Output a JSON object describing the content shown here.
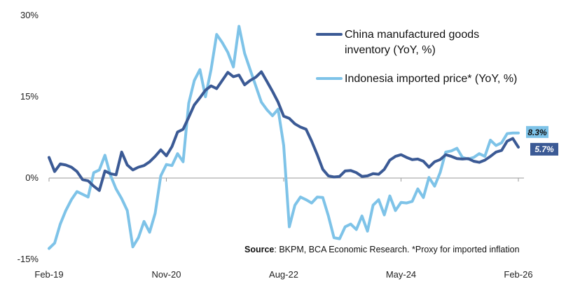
{
  "chart_data": {
    "type": "line",
    "title": "",
    "xlabel": "",
    "ylabel": "",
    "ylim": [
      -15,
      30
    ],
    "y_ticks": [
      "-15%",
      "0%",
      "15%",
      "30%"
    ],
    "y_tick_values": [
      -15,
      0,
      15,
      30
    ],
    "x_tick_labels": [
      "Feb-19",
      "Nov-20",
      "Aug-22",
      "May-24",
      "Feb-26"
    ],
    "x_tick_dates": [
      "2019-02",
      "2020-11",
      "2022-08",
      "2024-05",
      "2026-02"
    ],
    "grid": false,
    "legend_position": "top-right",
    "series": [
      {
        "name": "China manufactured goods inventory (YoY, %)",
        "legend_lines": [
          "China manufactured goods",
          "inventory (YoY, %)"
        ],
        "color": "#3b5a95",
        "end_label": "5.7%",
        "points": [
          [
            "2019-02",
            3.8
          ],
          [
            "2019-03",
            1.2
          ],
          [
            "2019-04",
            2.6
          ],
          [
            "2019-05",
            2.4
          ],
          [
            "2019-06",
            2.0
          ],
          [
            "2019-07",
            1.2
          ],
          [
            "2019-08",
            -0.3
          ],
          [
            "2019-09",
            -0.5
          ],
          [
            "2019-10",
            -1.5
          ],
          [
            "2019-11",
            -2.3
          ],
          [
            "2019-12",
            1.3
          ],
          [
            "2020-01",
            0.8
          ],
          [
            "2020-02",
            0.6
          ],
          [
            "2020-03",
            4.8
          ],
          [
            "2020-04",
            2.4
          ],
          [
            "2020-05",
            1.5
          ],
          [
            "2020-06",
            2.0
          ],
          [
            "2020-07",
            2.3
          ],
          [
            "2020-08",
            3.0
          ],
          [
            "2020-09",
            4.0
          ],
          [
            "2020-10",
            5.2
          ],
          [
            "2020-11",
            4.1
          ],
          [
            "2020-12",
            5.8
          ],
          [
            "2021-01",
            8.5
          ],
          [
            "2021-02",
            9.0
          ],
          [
            "2021-03",
            11.2
          ],
          [
            "2021-04",
            13.5
          ],
          [
            "2021-05",
            14.8
          ],
          [
            "2021-06",
            16.2
          ],
          [
            "2021-07",
            17.0
          ],
          [
            "2021-08",
            16.5
          ],
          [
            "2021-09",
            18.0
          ],
          [
            "2021-10",
            19.5
          ],
          [
            "2021-11",
            18.7
          ],
          [
            "2021-12",
            19.0
          ],
          [
            "2022-01",
            17.2
          ],
          [
            "2022-02",
            18.0
          ],
          [
            "2022-03",
            18.6
          ],
          [
            "2022-04",
            19.6
          ],
          [
            "2022-05",
            17.8
          ],
          [
            "2022-06",
            16.0
          ],
          [
            "2022-07",
            14.0
          ],
          [
            "2022-08",
            11.4
          ],
          [
            "2022-09",
            11.0
          ],
          [
            "2022-10",
            10.0
          ],
          [
            "2022-11",
            9.4
          ],
          [
            "2022-12",
            9.0
          ],
          [
            "2023-01",
            6.8
          ],
          [
            "2023-02",
            4.3
          ],
          [
            "2023-03",
            1.6
          ],
          [
            "2023-04",
            0.4
          ],
          [
            "2023-05",
            0.2
          ],
          [
            "2023-06",
            0.3
          ],
          [
            "2023-07",
            1.3
          ],
          [
            "2023-08",
            1.4
          ],
          [
            "2023-09",
            1.0
          ],
          [
            "2023-10",
            0.3
          ],
          [
            "2023-11",
            0.4
          ],
          [
            "2023-12",
            0.8
          ],
          [
            "2024-01",
            0.7
          ],
          [
            "2024-02",
            1.6
          ],
          [
            "2024-03",
            3.3
          ],
          [
            "2024-04",
            4.0
          ],
          [
            "2024-05",
            4.3
          ],
          [
            "2024-06",
            3.8
          ],
          [
            "2024-07",
            3.4
          ],
          [
            "2024-08",
            3.5
          ],
          [
            "2024-09",
            3.1
          ],
          [
            "2024-10",
            2.0
          ],
          [
            "2024-11",
            3.0
          ],
          [
            "2024-12",
            3.4
          ],
          [
            "2025-01",
            4.3
          ],
          [
            "2025-02",
            4.0
          ],
          [
            "2025-03",
            3.6
          ],
          [
            "2025-04",
            3.5
          ],
          [
            "2025-05",
            3.6
          ],
          [
            "2025-06",
            3.1
          ],
          [
            "2025-07",
            2.9
          ],
          [
            "2025-08",
            3.3
          ],
          [
            "2025-09",
            4.0
          ],
          [
            "2025-10",
            4.8
          ],
          [
            "2025-11",
            5.1
          ],
          [
            "2025-12",
            6.8
          ],
          [
            "2026-01",
            7.3
          ],
          [
            "2026-02",
            5.7
          ]
        ]
      },
      {
        "name": "Indonesia imported price* (YoY, %)",
        "legend_lines": [
          "Indonesia imported price* (YoY, %)"
        ],
        "color": "#7ec3e8",
        "end_label": "8.3%",
        "points": [
          [
            "2019-02",
            -13.0
          ],
          [
            "2019-03",
            -12.0
          ],
          [
            "2019-04",
            -8.5
          ],
          [
            "2019-05",
            -6.0
          ],
          [
            "2019-06",
            -4.0
          ],
          [
            "2019-07",
            -2.5
          ],
          [
            "2019-08",
            -3.0
          ],
          [
            "2019-09",
            -3.5
          ],
          [
            "2019-10",
            1.0
          ],
          [
            "2019-11",
            1.5
          ],
          [
            "2019-12",
            4.2
          ],
          [
            "2020-01",
            0.5
          ],
          [
            "2020-02",
            -2.0
          ],
          [
            "2020-03",
            -3.8
          ],
          [
            "2020-04",
            -6.0
          ],
          [
            "2020-05",
            -12.7
          ],
          [
            "2020-06",
            -11.0
          ],
          [
            "2020-07",
            -8.0
          ],
          [
            "2020-08",
            -10.0
          ],
          [
            "2020-09",
            -6.5
          ],
          [
            "2020-10",
            0.4
          ],
          [
            "2020-11",
            2.5
          ],
          [
            "2020-12",
            2.3
          ],
          [
            "2021-01",
            4.5
          ],
          [
            "2021-02",
            3.0
          ],
          [
            "2021-03",
            13.8
          ],
          [
            "2021-04",
            18.0
          ],
          [
            "2021-05",
            20.0
          ],
          [
            "2021-06",
            15.0
          ],
          [
            "2021-07",
            20.0
          ],
          [
            "2021-08",
            26.5
          ],
          [
            "2021-09",
            25.0
          ],
          [
            "2021-10",
            23.2
          ],
          [
            "2021-11",
            20.5
          ],
          [
            "2021-12",
            28.0
          ],
          [
            "2022-01",
            23.0
          ],
          [
            "2022-02",
            20.0
          ],
          [
            "2022-03",
            17.0
          ],
          [
            "2022-04",
            14.0
          ],
          [
            "2022-05",
            12.6
          ],
          [
            "2022-06",
            11.5
          ],
          [
            "2022-07",
            12.7
          ],
          [
            "2022-08",
            6.0
          ],
          [
            "2022-09",
            -9.0
          ],
          [
            "2022-10",
            -5.0
          ],
          [
            "2022-11",
            -3.5
          ],
          [
            "2022-12",
            -4.0
          ],
          [
            "2023-01",
            -4.6
          ],
          [
            "2023-02",
            -3.5
          ],
          [
            "2023-03",
            -3.6
          ],
          [
            "2023-04",
            -7.0
          ],
          [
            "2023-05",
            -11.0
          ],
          [
            "2023-06",
            -11.2
          ],
          [
            "2023-07",
            -9.0
          ],
          [
            "2023-08",
            -8.5
          ],
          [
            "2023-09",
            -9.5
          ],
          [
            "2023-10",
            -7.0
          ],
          [
            "2023-11",
            -9.8
          ],
          [
            "2023-12",
            -5.0
          ],
          [
            "2024-01",
            -4.0
          ],
          [
            "2024-02",
            -6.8
          ],
          [
            "2024-03",
            -3.3
          ],
          [
            "2024-04",
            -6.0
          ],
          [
            "2024-05",
            -4.5
          ],
          [
            "2024-06",
            -4.6
          ],
          [
            "2024-07",
            -4.3
          ],
          [
            "2024-08",
            -2.0
          ],
          [
            "2024-09",
            -3.6
          ],
          [
            "2024-10",
            0.1
          ],
          [
            "2024-11",
            -1.5
          ],
          [
            "2024-12",
            1.0
          ],
          [
            "2025-01",
            4.8
          ],
          [
            "2025-02",
            5.0
          ],
          [
            "2025-03",
            5.5
          ],
          [
            "2025-04",
            3.8
          ],
          [
            "2025-05",
            3.5
          ],
          [
            "2025-06",
            3.8
          ],
          [
            "2025-07",
            4.5
          ],
          [
            "2025-08",
            4.0
          ],
          [
            "2025-09",
            7.0
          ],
          [
            "2025-10",
            6.0
          ],
          [
            "2025-11",
            6.5
          ],
          [
            "2025-12",
            8.2
          ],
          [
            "2026-01",
            8.3
          ],
          [
            "2026-02",
            8.3
          ]
        ]
      }
    ],
    "source_label": "Source",
    "source_text": ": BKPM, BCA Economic Research. *Proxy for imported inflation"
  }
}
